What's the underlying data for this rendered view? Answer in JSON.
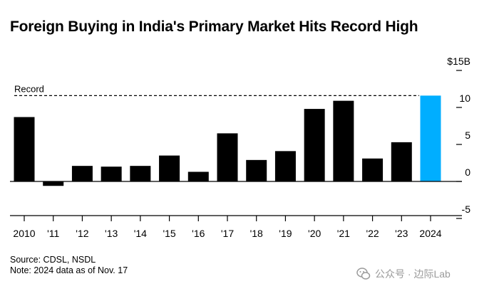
{
  "title": "Foreign Buying in India's Primary Market Hits Record High",
  "source": "Source: CDSL, NSDL",
  "note": "Note: 2024 data as of Nov. 17",
  "watermark": "公众号 · 边际Lab",
  "colors": {
    "bar": "#000000",
    "highlight": "#00aeff",
    "axis": "#000000"
  },
  "chart_data": {
    "type": "bar",
    "categories": [
      "2010",
      "'11",
      "'12",
      "'13",
      "'14",
      "'15",
      "'16",
      "'17",
      "'18",
      "'19",
      "'20",
      "'21",
      "'22",
      "'23",
      "2024"
    ],
    "values": [
      8.7,
      -0.6,
      2.1,
      2.0,
      2.1,
      3.5,
      1.3,
      6.5,
      2.9,
      4.1,
      9.8,
      10.9,
      3.1,
      5.3,
      11.6
    ],
    "highlight_index": 14,
    "ylim": [
      -5,
      15
    ],
    "yticks": [
      -5,
      0,
      5,
      10,
      15
    ],
    "ytick_labels": [
      "-5",
      "0",
      "5",
      "10",
      "$15B"
    ],
    "record_value": 11.6,
    "record_label": "Record",
    "grid": false
  }
}
